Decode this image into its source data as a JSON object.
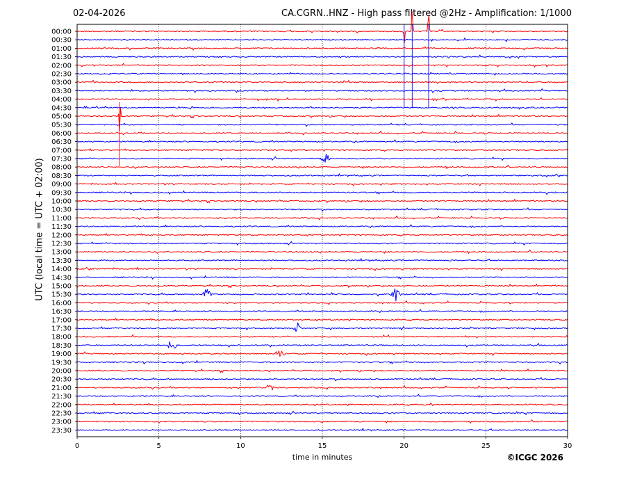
{
  "header": {
    "date": "02-04-2026",
    "title": "CA.CGRN..HNZ - High pass filtered @2Hz - Amplification: 1/1000"
  },
  "footer": {
    "copyright": "©ICGC 2026"
  },
  "chart_data": {
    "type": "line",
    "title": "CA.CGRN..HNZ - High pass filtered @2Hz - Amplification: 1/1000",
    "xlabel": "time in minutes",
    "ylabel": "UTC (local time = UTC + 02:00)",
    "xlim": [
      0,
      30
    ],
    "x_ticks": [
      "0",
      "5",
      "10",
      "15",
      "20",
      "25",
      "30"
    ],
    "grid": "vertical dotted at x ticks",
    "series_colors": [
      "#ff0000",
      "#0000ff"
    ],
    "rows": [
      {
        "label": "00:00",
        "color": "#ff0000"
      },
      {
        "label": "00:30",
        "color": "#0000ff"
      },
      {
        "label": "01:00",
        "color": "#ff0000"
      },
      {
        "label": "01:30",
        "color": "#0000ff"
      },
      {
        "label": "02:00",
        "color": "#ff0000"
      },
      {
        "label": "02:30",
        "color": "#0000ff"
      },
      {
        "label": "03:00",
        "color": "#ff0000"
      },
      {
        "label": "03:30",
        "color": "#0000ff"
      },
      {
        "label": "04:00",
        "color": "#ff0000"
      },
      {
        "label": "04:30",
        "color": "#0000ff"
      },
      {
        "label": "05:00",
        "color": "#ff0000"
      },
      {
        "label": "05:30",
        "color": "#0000ff"
      },
      {
        "label": "06:00",
        "color": "#ff0000"
      },
      {
        "label": "06:30",
        "color": "#0000ff"
      },
      {
        "label": "07:00",
        "color": "#ff0000"
      },
      {
        "label": "07:30",
        "color": "#0000ff"
      },
      {
        "label": "08:00",
        "color": "#ff0000"
      },
      {
        "label": "08:30",
        "color": "#0000ff"
      },
      {
        "label": "09:00",
        "color": "#ff0000"
      },
      {
        "label": "09:30",
        "color": "#0000ff"
      },
      {
        "label": "10:00",
        "color": "#ff0000"
      },
      {
        "label": "10:30",
        "color": "#0000ff"
      },
      {
        "label": "11:00",
        "color": "#ff0000"
      },
      {
        "label": "11:30",
        "color": "#0000ff"
      },
      {
        "label": "12:00",
        "color": "#ff0000"
      },
      {
        "label": "12:30",
        "color": "#0000ff"
      },
      {
        "label": "13:00",
        "color": "#ff0000"
      },
      {
        "label": "13:30",
        "color": "#0000ff"
      },
      {
        "label": "14:00",
        "color": "#ff0000"
      },
      {
        "label": "14:30",
        "color": "#0000ff"
      },
      {
        "label": "15:00",
        "color": "#ff0000"
      },
      {
        "label": "15:30",
        "color": "#0000ff"
      },
      {
        "label": "16:00",
        "color": "#ff0000"
      },
      {
        "label": "16:30",
        "color": "#0000ff"
      },
      {
        "label": "17:00",
        "color": "#ff0000"
      },
      {
        "label": "17:30",
        "color": "#0000ff"
      },
      {
        "label": "18:00",
        "color": "#ff0000"
      },
      {
        "label": "18:30",
        "color": "#0000ff"
      },
      {
        "label": "19:00",
        "color": "#ff0000"
      },
      {
        "label": "19:30",
        "color": "#0000ff"
      },
      {
        "label": "20:00",
        "color": "#ff0000"
      },
      {
        "label": "20:30",
        "color": "#0000ff"
      },
      {
        "label": "21:00",
        "color": "#ff0000"
      },
      {
        "label": "21:30",
        "color": "#0000ff"
      },
      {
        "label": "22:00",
        "color": "#ff0000"
      },
      {
        "label": "22:30",
        "color": "#0000ff"
      },
      {
        "label": "23:00",
        "color": "#ff0000"
      },
      {
        "label": "23:30",
        "color": "#0000ff"
      }
    ],
    "events": [
      {
        "row": "00:00",
        "minute": 20.0,
        "amplitude": "large"
      },
      {
        "row": "00:00",
        "minute": 20.5,
        "amplitude": "large"
      },
      {
        "row": "00:00",
        "minute": 21.5,
        "amplitude": "large"
      },
      {
        "row": "05:00",
        "minute": 2.6,
        "amplitude": "large"
      },
      {
        "row": "07:30",
        "minute": 15.2,
        "amplitude": "medium"
      },
      {
        "row": "15:30",
        "minute": 7.9,
        "amplitude": "medium"
      },
      {
        "row": "15:30",
        "minute": 19.5,
        "amplitude": "medium"
      },
      {
        "row": "17:30",
        "minute": 13.5,
        "amplitude": "medium"
      },
      {
        "row": "18:30",
        "minute": 5.8,
        "amplitude": "medium"
      },
      {
        "row": "19:00",
        "minute": 12.4,
        "amplitude": "medium"
      },
      {
        "row": "21:00",
        "minute": 11.8,
        "amplitude": "small"
      },
      {
        "row": "22:00",
        "minute": 21.6,
        "amplitude": "small"
      }
    ]
  }
}
